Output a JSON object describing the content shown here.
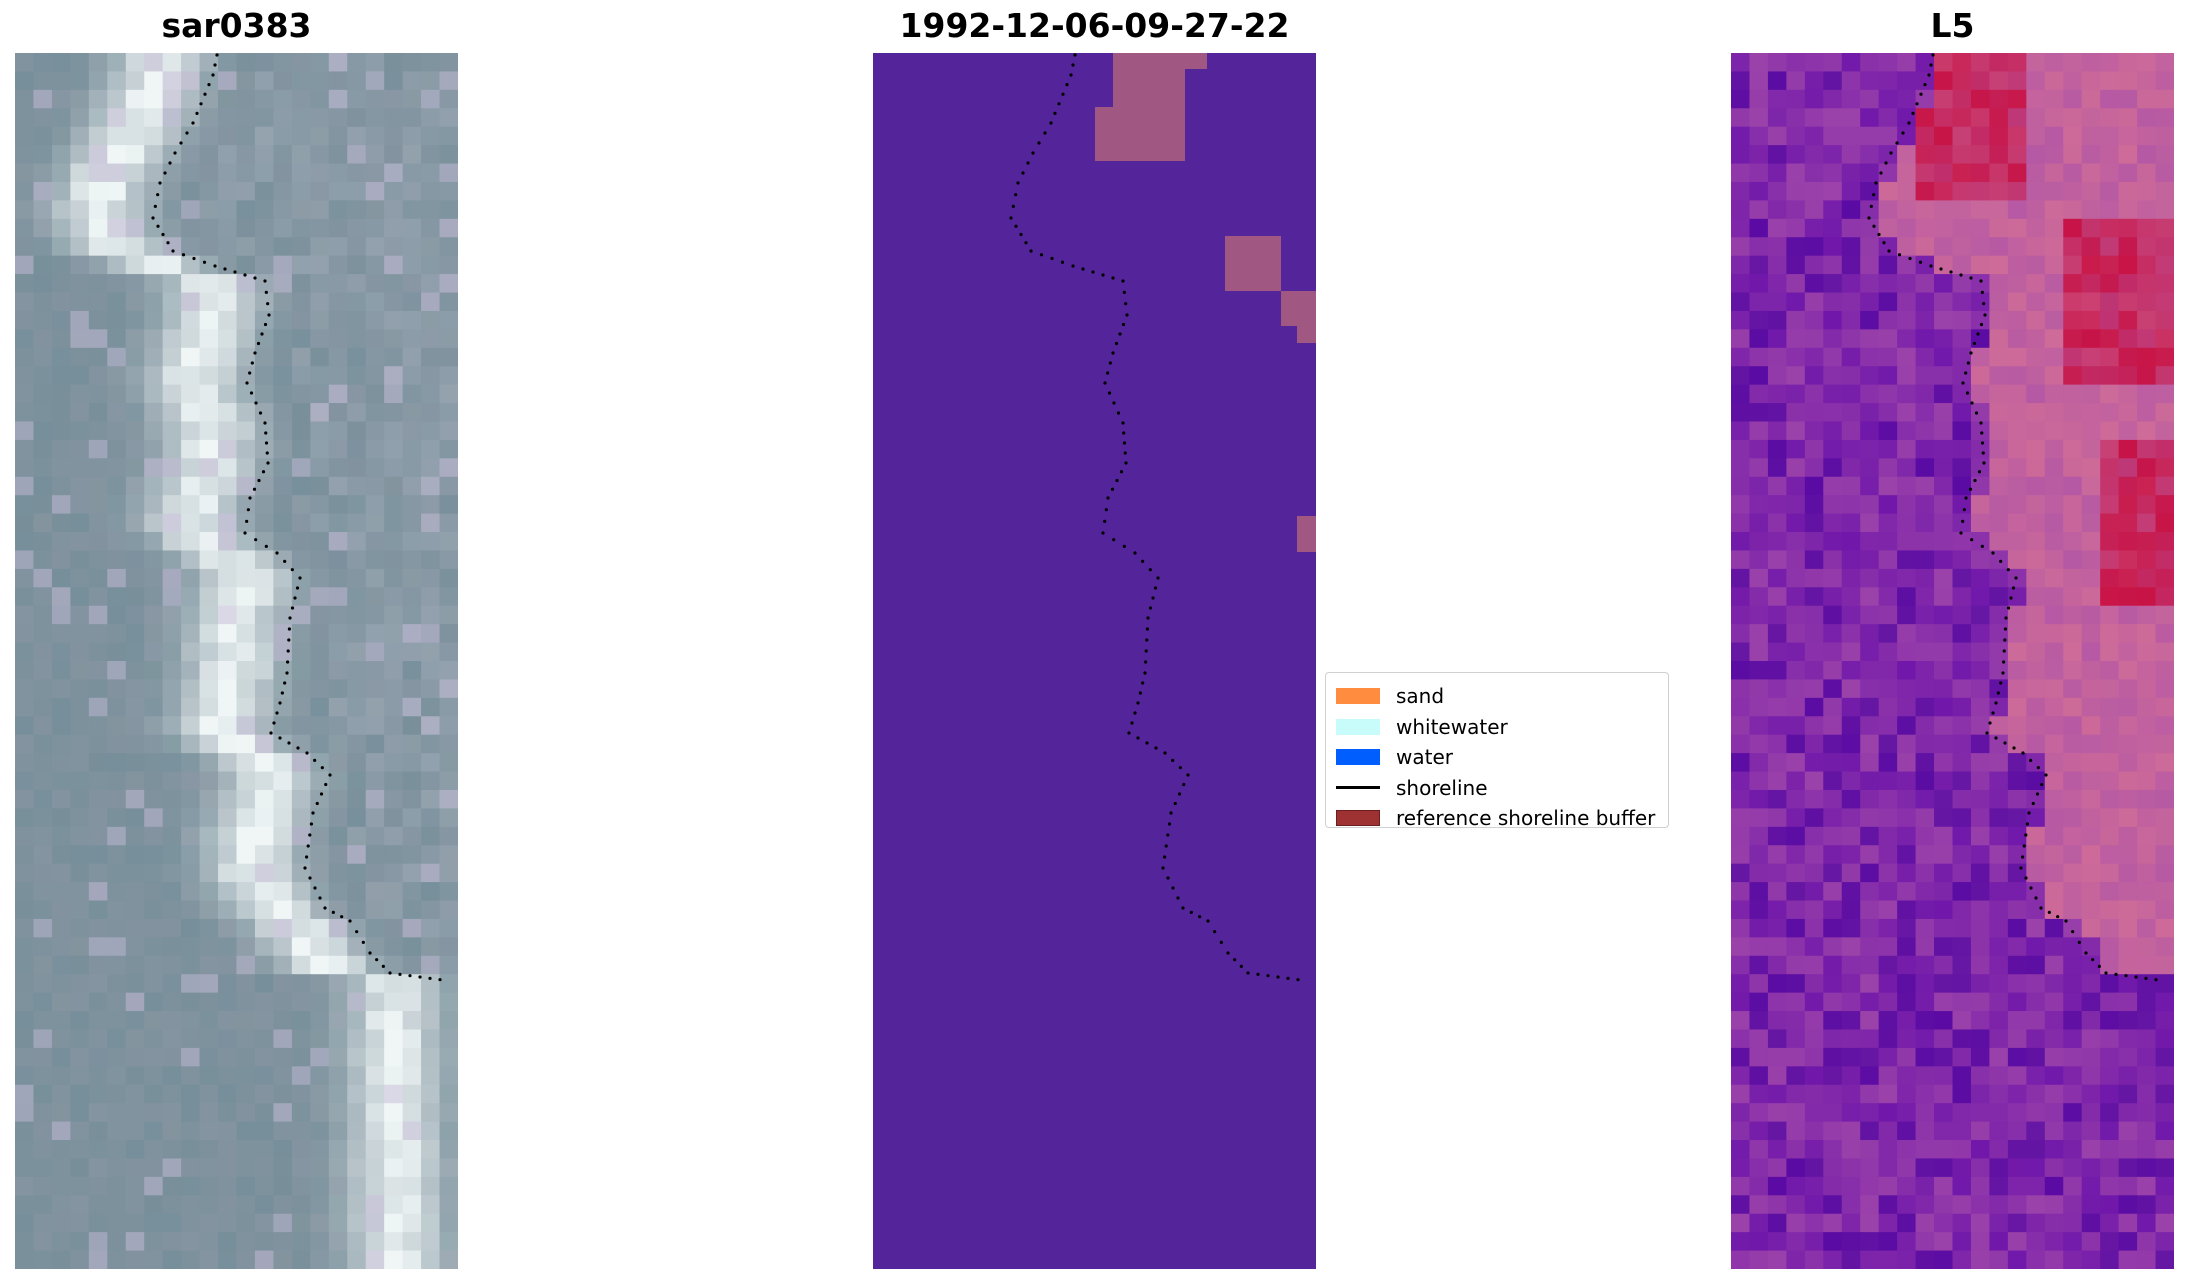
{
  "panels": [
    {
      "id": "rgb",
      "title": "sar0383"
    },
    {
      "id": "classified",
      "title": "1992-12-06-09-27-22"
    },
    {
      "id": "index",
      "title": "L5"
    }
  ],
  "legend": {
    "items": [
      {
        "label": "sand",
        "kind": "patch",
        "color": "#ff8c3f"
      },
      {
        "label": "whitewater",
        "kind": "patch",
        "color": "#c8fcfb"
      },
      {
        "label": "water",
        "kind": "patch",
        "color": "#005eff"
      },
      {
        "label": "shoreline",
        "kind": "line",
        "color": "#000000"
      },
      {
        "label": "reference shoreline buffer",
        "kind": "patch",
        "color": "#9e3132",
        "edge": "#6b1f1f"
      }
    ]
  },
  "colors": {
    "classified_background": "#53249a",
    "buffer_overlay": "#a05882",
    "shoreline": "#000000"
  }
}
